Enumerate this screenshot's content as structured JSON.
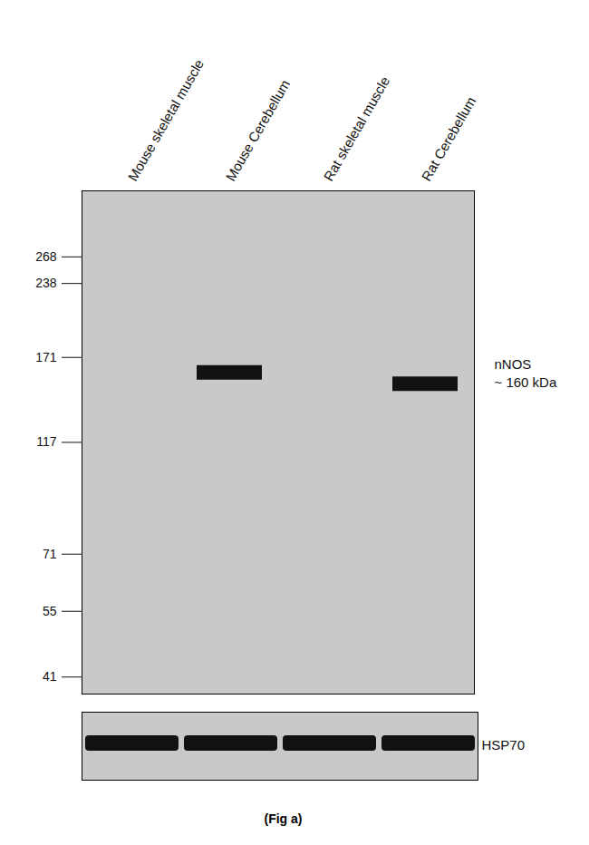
{
  "chart_data": {
    "type": "western_blot",
    "caption": "(Fig a)",
    "categories": [
      "Mouse skeletal muscle",
      "Mouse Cerebellum",
      "Rat skeletal muscle",
      "Rat Cerebellum"
    ],
    "log": "y",
    "ylim": [
      38,
      360
    ],
    "yticks": [
      41,
      55,
      71,
      117,
      171,
      238,
      268
    ],
    "series": [
      {
        "name": "nNOS",
        "annotation": "~ 160 kDa",
        "color": "#111111",
        "values": [
          null,
          160,
          null,
          152
        ]
      }
    ],
    "loading_control": {
      "name": "HSP70",
      "color": "#111111"
    }
  }
}
